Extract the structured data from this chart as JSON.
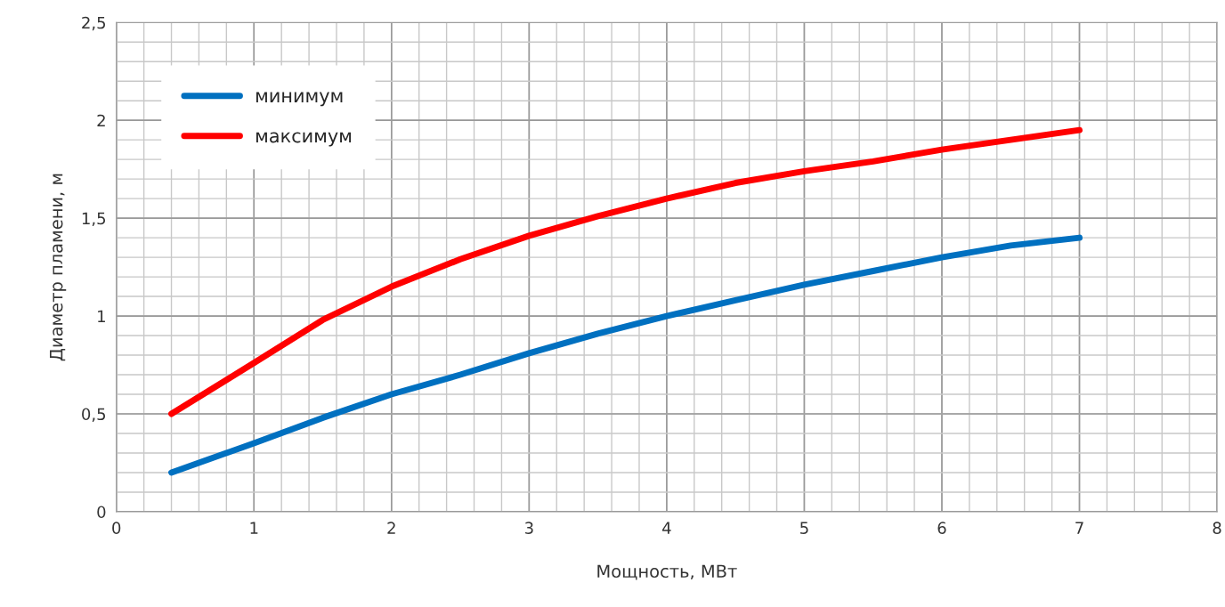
{
  "chart_data": {
    "type": "line",
    "xlabel": "Мощность, МВт",
    "ylabel": "Диаметр пламени, м",
    "x": [
      0.4,
      1,
      1.5,
      2,
      2.5,
      3,
      3.5,
      4,
      4.5,
      5,
      5.5,
      6,
      6.5,
      7
    ],
    "series": [
      {
        "name": "минимум",
        "color": "#0070c0",
        "values": [
          0.2,
          0.35,
          0.48,
          0.6,
          0.7,
          0.81,
          0.91,
          1.0,
          1.08,
          1.16,
          1.23,
          1.3,
          1.36,
          1.4
        ]
      },
      {
        "name": "максимум",
        "color": "#ff0000",
        "values": [
          0.5,
          0.76,
          0.98,
          1.15,
          1.29,
          1.41,
          1.51,
          1.6,
          1.68,
          1.74,
          1.79,
          1.85,
          1.9,
          1.95
        ]
      }
    ],
    "xlim": [
      0,
      8
    ],
    "xticks": [
      0,
      1,
      2,
      3,
      4,
      5,
      6,
      7,
      8
    ],
    "ylim": [
      0,
      2.5
    ],
    "yticks": [
      0,
      {
        "value": 0.5,
        "label": "0,5"
      },
      1,
      {
        "value": 1.5,
        "label": "1,5"
      },
      2,
      {
        "value": 2.5,
        "label": "2,5"
      }
    ],
    "grid": true,
    "legend": "top left",
    "marker": "none",
    "line_style": "solid"
  }
}
